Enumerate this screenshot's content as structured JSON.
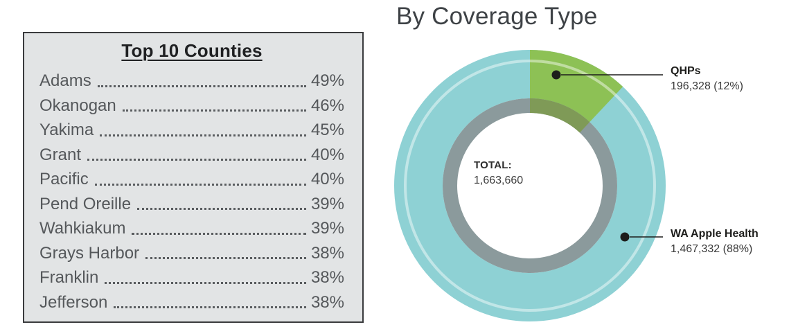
{
  "counties_box": {
    "title": "Top 10 Counties",
    "rows": [
      {
        "name": "Adams",
        "value": "49%"
      },
      {
        "name": "Okanogan",
        "value": "46%"
      },
      {
        "name": "Yakima",
        "value": "45%"
      },
      {
        "name": "Grant",
        "value": "40%"
      },
      {
        "name": "Pacific",
        "value": "40%"
      },
      {
        "name": "Pend Oreille",
        "value": "39%"
      },
      {
        "name": "Wahkiakum",
        "value": "39%"
      },
      {
        "name": "Grays Harbor",
        "value": "38%"
      },
      {
        "name": "Franklin",
        "value": "38%"
      },
      {
        "name": "Jefferson",
        "value": "38%"
      }
    ]
  },
  "chart_data": {
    "type": "pie",
    "subtype": "donut",
    "title": "By Coverage Type",
    "start_angle_deg": 0,
    "clockwise": true,
    "center": {
      "label": "TOTAL:",
      "value": "1,663,660"
    },
    "segments": [
      {
        "label": "QHPs",
        "value": 196328,
        "percent": 12,
        "display": "196,328 (12%)",
        "color": "#8dc155"
      },
      {
        "label": "WA Apple Health",
        "value": 1467332,
        "percent": 88,
        "display": "1,467,332 (88%)",
        "color": "#8ed1d4"
      }
    ],
    "colors": {
      "inner_ring": "#8b9a9c",
      "qhps_over_inner_ring": "#7f9a57",
      "highlight_arc": "rgba(255,255,255,0.45)",
      "callout": "#1d1d1b"
    }
  }
}
